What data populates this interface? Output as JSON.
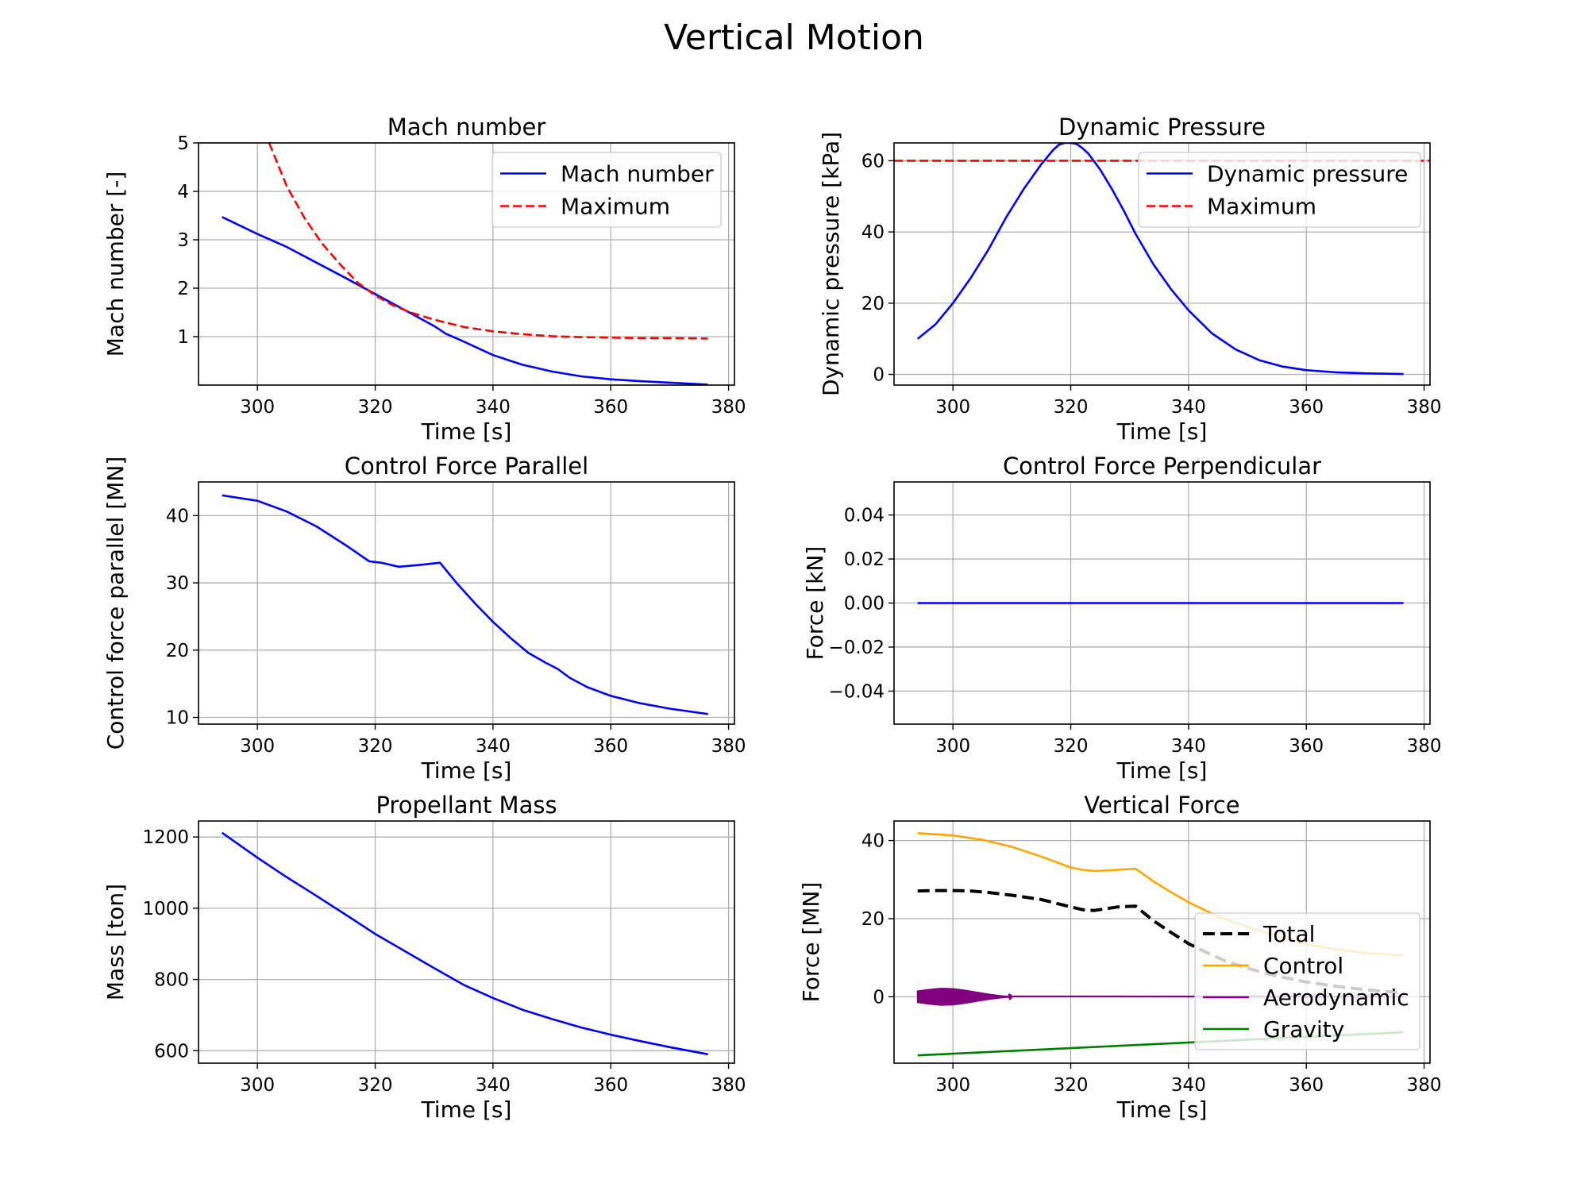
{
  "figure": {
    "title": "Vertical Motion"
  },
  "chart_data": [
    {
      "type": "line",
      "title": "Mach number",
      "xlabel": "Time [s]",
      "ylabel": "Mach number [-]",
      "xlim": [
        290,
        381
      ],
      "ylim": [
        0,
        5
      ],
      "xticks": [
        300,
        320,
        340,
        360,
        380
      ],
      "yticks": [
        1,
        2,
        3,
        4,
        5
      ],
      "grid": true,
      "legend": "top-right",
      "series": [
        {
          "name": "Mach number",
          "color": "#0000ff",
          "dash": "solid",
          "x": [
            294,
            300,
            305,
            310,
            315,
            320,
            325,
            330,
            332,
            335,
            340,
            345,
            350,
            355,
            360,
            365,
            370,
            376.5
          ],
          "y": [
            3.47,
            3.12,
            2.85,
            2.53,
            2.21,
            1.88,
            1.55,
            1.22,
            1.06,
            0.9,
            0.62,
            0.42,
            0.28,
            0.18,
            0.12,
            0.08,
            0.05,
            0.01
          ]
        },
        {
          "name": "Maximum",
          "color": "#ff0000",
          "dash": "dashed",
          "x": [
            302,
            305,
            308,
            311,
            314,
            317,
            320,
            323,
            326,
            330,
            335,
            340,
            345,
            350,
            355,
            360,
            365,
            370,
            376.5
          ],
          "y": [
            5.0,
            4.1,
            3.45,
            2.92,
            2.5,
            2.12,
            1.85,
            1.65,
            1.5,
            1.35,
            1.2,
            1.11,
            1.05,
            1.01,
            0.99,
            0.98,
            0.97,
            0.97,
            0.96
          ]
        }
      ]
    },
    {
      "type": "line",
      "title": "Dynamic Pressure",
      "xlabel": "Time [s]",
      "ylabel": "Dynamic pressure [kPa]",
      "xlim": [
        290,
        381
      ],
      "ylim": [
        -3,
        65
      ],
      "xticks": [
        300,
        320,
        340,
        360,
        380
      ],
      "yticks": [
        0,
        20,
        40,
        60
      ],
      "grid": true,
      "legend": "top-right",
      "series": [
        {
          "name": "Dynamic pressure",
          "color": "#0000ff",
          "dash": "solid",
          "x": [
            294,
            297,
            300,
            303,
            306,
            309,
            312,
            315,
            317,
            318,
            319,
            320,
            321,
            322,
            323,
            325,
            327,
            329,
            331,
            334,
            337,
            340,
            344,
            348,
            352,
            356,
            360,
            365,
            370,
            376.5
          ],
          "y": [
            10,
            14,
            20,
            27,
            35,
            44,
            52,
            59,
            63,
            64.5,
            65,
            65,
            64.7,
            63.5,
            62,
            57.5,
            52,
            46,
            39.5,
            31,
            24,
            18,
            11.5,
            7,
            4,
            2.2,
            1.2,
            0.6,
            0.3,
            0.1
          ]
        },
        {
          "name": "Maximum",
          "color": "#ff0000",
          "dash": "dashed",
          "x": [
            290,
            381
          ],
          "y": [
            60,
            60
          ]
        }
      ]
    },
    {
      "type": "line",
      "title": "Control Force Parallel",
      "xlabel": "Time [s]",
      "ylabel": "Control force parallel [MN]",
      "xlim": [
        290,
        381
      ],
      "ylim": [
        9,
        45
      ],
      "xticks": [
        300,
        320,
        340,
        360,
        380
      ],
      "yticks": [
        10,
        20,
        30,
        40
      ],
      "grid": true,
      "legend": "none",
      "series": [
        {
          "name": "",
          "color": "#0000ff",
          "dash": "solid",
          "x": [
            294,
            300,
            305,
            310,
            315,
            319,
            321,
            322,
            324,
            328,
            331,
            334,
            337,
            340,
            343,
            346,
            349,
            351,
            353,
            356,
            360,
            365,
            370,
            376.5
          ],
          "y": [
            43,
            42.2,
            40.6,
            38.4,
            35.6,
            33.2,
            33.0,
            32.8,
            32.4,
            32.7,
            33.0,
            29.8,
            26.9,
            24.2,
            21.8,
            19.6,
            18.1,
            17.2,
            15.9,
            14.5,
            13.2,
            12.1,
            11.3,
            10.5
          ]
        }
      ]
    },
    {
      "type": "line",
      "title": "Control Force Perpendicular",
      "xlabel": "Time [s]",
      "ylabel": "Force [kN]",
      "xlim": [
        290,
        381
      ],
      "ylim": [
        -0.055,
        0.055
      ],
      "xticks": [
        300,
        320,
        340,
        360,
        380
      ],
      "yticks": [
        0.04,
        0.02,
        0.0,
        -0.02,
        -0.04
      ],
      "ytick_labels": [
        "0.04",
        "0.02",
        "0.00",
        "−0.02",
        "−0.04"
      ],
      "grid": true,
      "legend": "none",
      "series": [
        {
          "name": "",
          "color": "#0000ff",
          "dash": "solid",
          "x": [
            294,
            376.5
          ],
          "y": [
            0,
            0
          ]
        }
      ]
    },
    {
      "type": "line",
      "title": "Propellant Mass",
      "xlabel": "Time [s]",
      "ylabel": "Mass [ton]",
      "xlim": [
        290,
        381
      ],
      "ylim": [
        565,
        1245
      ],
      "xticks": [
        300,
        320,
        340,
        360,
        380
      ],
      "yticks": [
        600,
        800,
        1000,
        1200
      ],
      "grid": true,
      "legend": "none",
      "series": [
        {
          "name": "",
          "color": "#0000ff",
          "dash": "solid",
          "x": [
            294,
            300,
            305,
            310,
            315,
            320,
            325,
            330,
            335,
            340,
            345,
            350,
            355,
            360,
            365,
            370,
            376.5
          ],
          "y": [
            1212,
            1142,
            1087,
            1035,
            982,
            928,
            880,
            832,
            785,
            748,
            715,
            689,
            665,
            645,
            627,
            610,
            590
          ]
        }
      ]
    },
    {
      "type": "line",
      "title": "Vertical Force",
      "xlabel": "Time [s]",
      "ylabel": "Force [MN]",
      "xlim": [
        290,
        381
      ],
      "ylim": [
        -17,
        45
      ],
      "xticks": [
        300,
        320,
        340,
        360,
        380
      ],
      "yticks": [
        0,
        20,
        40
      ],
      "grid": true,
      "legend": "bottom-right",
      "series": [
        {
          "name": "Total",
          "color": "#000000",
          "dash": "dashed",
          "x": [
            294,
            297,
            300,
            303,
            306,
            310,
            315,
            320,
            322,
            324,
            328,
            331,
            334,
            337,
            340,
            343,
            346,
            350,
            355,
            360,
            365,
            370,
            376.5
          ],
          "y": [
            27.1,
            27.2,
            27.2,
            27.1,
            26.7,
            26.0,
            24.9,
            23.0,
            22.3,
            22.1,
            23.0,
            23.2,
            19.5,
            16.5,
            13.6,
            11.4,
            9.3,
            7.3,
            5.3,
            3.8,
            2.7,
            1.8,
            1.0
          ]
        },
        {
          "name": "Control",
          "color": "#ffa500",
          "dash": "solid",
          "x": [
            294,
            300,
            305,
            310,
            315,
            320,
            322,
            324,
            328,
            331,
            334,
            337,
            340,
            343,
            346,
            350,
            355,
            360,
            365,
            370,
            376.5
          ],
          "y": [
            41.9,
            41.3,
            40.2,
            38.4,
            35.9,
            33.1,
            32.5,
            32.2,
            32.5,
            32.8,
            29.6,
            26.8,
            24.2,
            22.0,
            20.0,
            17.9,
            15.5,
            13.5,
            12.2,
            11.2,
            10.5
          ]
        },
        {
          "name": "Aerodynamic",
          "color": "#800080",
          "dash": "solid",
          "x": [
            294,
            296,
            298,
            300,
            302,
            304,
            306,
            308,
            310,
            376.5
          ],
          "y": [
            0,
            0,
            0,
            0,
            0,
            0,
            0,
            0,
            0,
            0
          ],
          "oscillation_amplitude": [
            1.6,
            2.0,
            2.3,
            2.2,
            1.8,
            1.3,
            0.8,
            0.4,
            0.1,
            0
          ]
        },
        {
          "name": "Gravity",
          "color": "#008000",
          "dash": "solid",
          "x": [
            294,
            376.5
          ],
          "y": [
            -15,
            -9.1
          ]
        }
      ]
    }
  ]
}
